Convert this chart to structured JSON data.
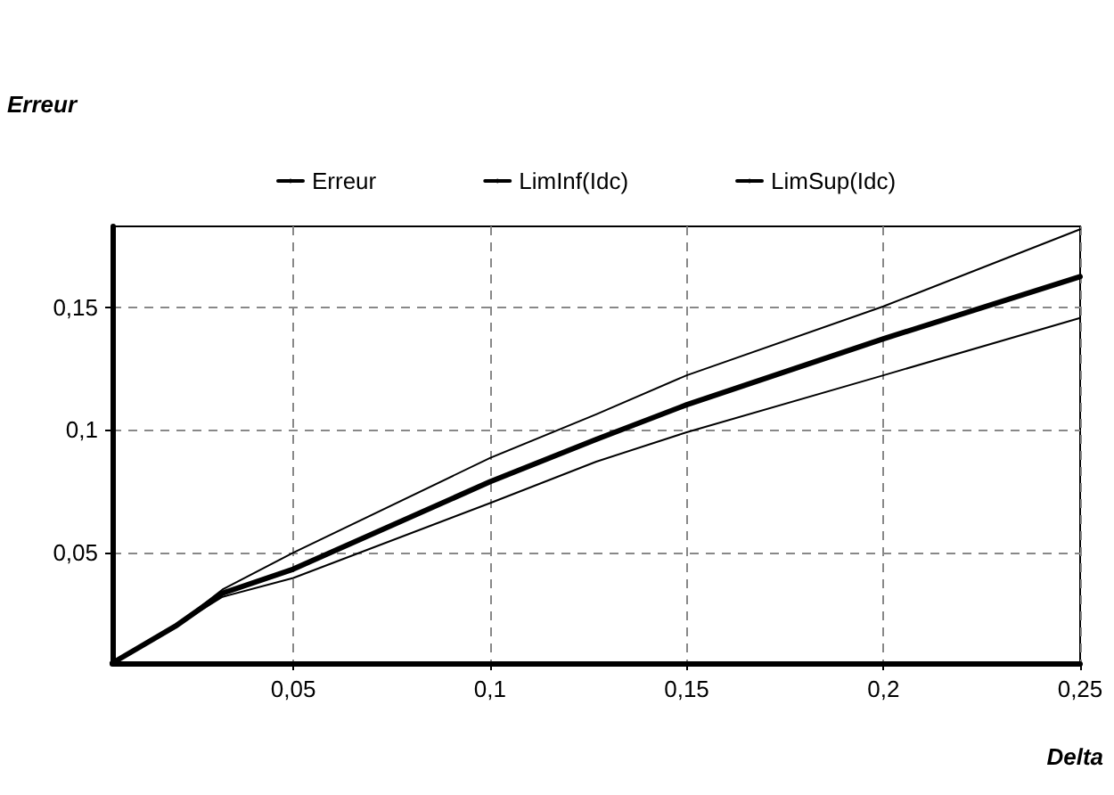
{
  "chart_data": {
    "type": "line",
    "ylabel": "Erreur",
    "xlabel": "Delta",
    "xlim": [
      0.004,
      0.25
    ],
    "xticks": [
      {
        "value": 0.05,
        "label": "0,05"
      },
      {
        "value": 0.1,
        "label": "0,1"
      },
      {
        "value": 0.15,
        "label": "0,15"
      },
      {
        "value": 0.2,
        "label": "0,2"
      },
      {
        "value": 0.25,
        "label": "0,25"
      }
    ],
    "ylim": [
      0.005,
      0.183
    ],
    "yticks": [
      {
        "value": 0.05,
        "label": "0,05"
      },
      {
        "value": 0.1,
        "label": "0,1"
      },
      {
        "value": 0.15,
        "label": "0,15"
      }
    ],
    "x": [
      0.004,
      0.02,
      0.032,
      0.05,
      0.1,
      0.127,
      0.15,
      0.2,
      0.25
    ],
    "series": [
      {
        "name": "Erreur",
        "color": "#000000",
        "values": [
          0.005,
          0.02,
          0.0335,
          0.0433,
          0.0789,
          0.0962,
          0.1103,
          0.1372,
          0.1625
        ]
      },
      {
        "name": "LimInf(Idc)",
        "color": "#000000",
        "values": [
          0.005,
          0.02,
          0.032,
          0.0397,
          0.0702,
          0.0871,
          0.0991,
          0.1223,
          0.1457
        ]
      },
      {
        "name": "LimSup(Idc)",
        "color": "#000000",
        "values": [
          0.005,
          0.02,
          0.035,
          0.05,
          0.0886,
          0.1064,
          0.1223,
          0.1504,
          0.1818
        ]
      }
    ],
    "grid": true,
    "legend": "top",
    "marker": "none",
    "line_style": "solid"
  }
}
